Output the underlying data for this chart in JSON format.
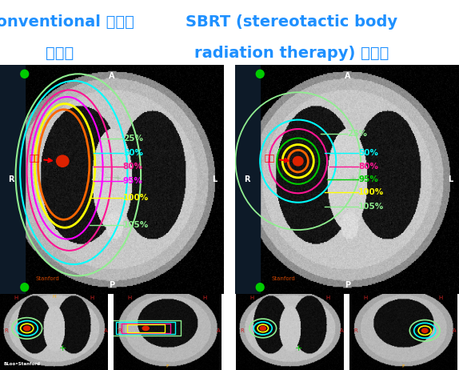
{
  "title_left_line1": "Conventional 방사선",
  "title_left_line2": "치료법",
  "title_right_line1": "SBRT (stereotactic body",
  "title_right_line2": "radiation therapy) 치료법",
  "title_color": "#1e90ff",
  "bg_color": "#ffffff",
  "title_fontsize": 15,
  "fig_width": 5.74,
  "fig_height": 4.62,
  "footer_text": "BLoo•Stanford"
}
